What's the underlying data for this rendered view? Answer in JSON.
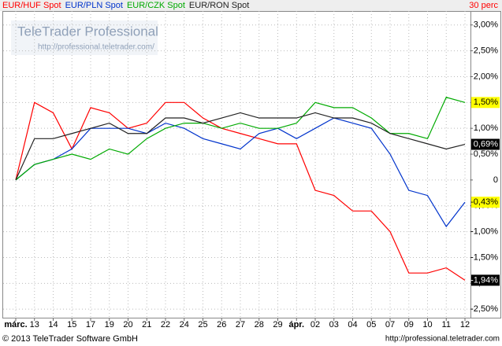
{
  "chart_data": {
    "type": "line",
    "period_label": "30 perc",
    "watermark": {
      "title": "TeleTrader Professional",
      "url": "http://professional.teletrader.com/"
    },
    "footer": {
      "copyright": "© 2013 TeleTrader Software GmbH",
      "url": "http://professional.teletrader.com"
    },
    "categories": [
      "márc.",
      "13",
      "14",
      "15",
      "17",
      "19",
      "20",
      "21",
      "22",
      "24",
      "25",
      "26",
      "27",
      "28",
      "29",
      "ápr.",
      "02",
      "03",
      "04",
      "05",
      "07",
      "09",
      "10",
      "11",
      "12"
    ],
    "series": [
      {
        "name": "EUR/HUF Spot",
        "color": "#ff0000",
        "end_label": "-1,94%",
        "end_label_fill": "#000000",
        "end_label_text": "#ffffff",
        "values": [
          0,
          1.5,
          1.3,
          0.6,
          1.4,
          1.3,
          1.0,
          1.1,
          1.5,
          1.5,
          1.2,
          1.0,
          0.9,
          0.8,
          0.7,
          0.7,
          -0.2,
          -0.3,
          -0.6,
          -0.6,
          -1.0,
          -1.8,
          -1.8,
          -1.7,
          -1.94
        ]
      },
      {
        "name": "EUR/PLN Spot",
        "color": "#0033cc",
        "end_label": "-0,43%",
        "end_label_fill": "#ffff00",
        "end_label_text": "#000000",
        "values": [
          0,
          0.3,
          0.4,
          0.6,
          1.0,
          1.0,
          1.0,
          0.9,
          1.1,
          1.0,
          0.8,
          0.7,
          0.6,
          0.9,
          1.0,
          0.8,
          1.0,
          1.2,
          1.1,
          1.0,
          0.5,
          -0.2,
          -0.3,
          -0.9,
          -0.43
        ]
      },
      {
        "name": "EUR/CZK Spot",
        "color": "#00aa00",
        "end_label": "1,50%",
        "end_label_fill": "#ffff00",
        "end_label_text": "#000000",
        "values": [
          0,
          0.3,
          0.4,
          0.5,
          0.4,
          0.6,
          0.5,
          0.8,
          1.0,
          1.1,
          1.1,
          1.0,
          1.1,
          1.0,
          1.0,
          1.1,
          1.5,
          1.4,
          1.4,
          1.2,
          0.9,
          0.9,
          0.8,
          1.6,
          1.5
        ]
      },
      {
        "name": "EUR/RON Spot",
        "color": "#222222",
        "end_label": "0,69%",
        "end_label_fill": "#000000",
        "end_label_text": "#ffffff",
        "values": [
          0,
          0.8,
          0.8,
          0.9,
          1.0,
          1.1,
          0.9,
          0.9,
          1.2,
          1.2,
          1.1,
          1.2,
          1.3,
          1.2,
          1.2,
          1.2,
          1.3,
          1.2,
          1.2,
          1.1,
          0.9,
          0.8,
          0.7,
          0.6,
          0.69
        ]
      }
    ],
    "ylim": [
      -2.68,
      3.27
    ],
    "yticks": [
      {
        "value": 3,
        "label": "3,00%"
      },
      {
        "value": 2.5,
        "label": "2,50%"
      },
      {
        "value": 2,
        "label": "2,00%"
      },
      {
        "value": 1.5,
        "label": "1,50%"
      },
      {
        "value": 1,
        "label": "1,00%"
      },
      {
        "value": 0.5,
        "label": "0,50%"
      },
      0,
      {
        "value": -0.5,
        "label": "-0,50%"
      },
      {
        "value": -1,
        "label": "-1,00%"
      },
      {
        "value": -1.5,
        "label": "-1,50%"
      },
      {
        "value": -2,
        "label": "-2,00%"
      },
      {
        "value": -2.5,
        "label": "-2,50%"
      }
    ],
    "grid": true
  }
}
